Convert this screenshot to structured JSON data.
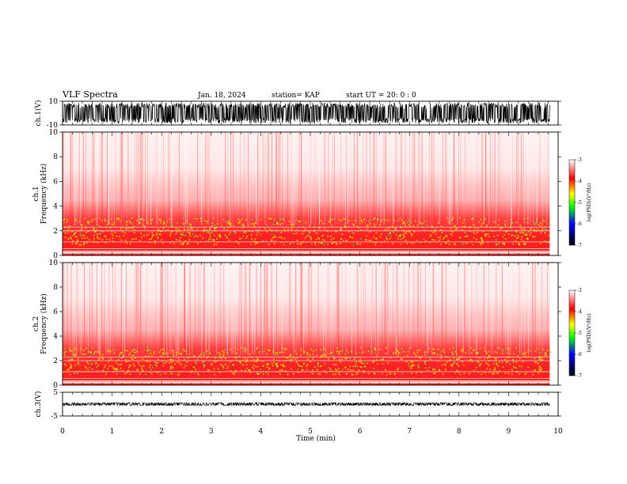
{
  "header": {
    "title": "VLF Spectra",
    "date": "Jan. 18, 2024",
    "station": "station= KAP",
    "start": "start  UT =   20: 0  : 0"
  },
  "chart_data": [
    {
      "type": "line",
      "name": "ch1-waveform",
      "ylabel": "ch.1(V)",
      "ylim": [
        -10,
        10
      ],
      "yticks": [
        "10",
        "-10"
      ],
      "xlim": [
        0,
        10
      ],
      "x_extent": [
        0,
        9.83
      ]
    },
    {
      "type": "heatmap",
      "name": "ch1-spectrogram",
      "ylabel_line1": "ch.1",
      "ylabel_line2": "Frequency  (kHz)",
      "ylim": [
        0,
        10
      ],
      "yticks": [
        "0",
        "2",
        "4",
        "6",
        "8",
        "10"
      ],
      "xlim": [
        0,
        10
      ],
      "x_extent": [
        0,
        9.83
      ],
      "colorbar": {
        "label": "log(PSD)(V²/Hz)",
        "range": [
          -7,
          -3
        ],
        "ticks": [
          "-3",
          "-4",
          "-5",
          "-6",
          "-7"
        ]
      }
    },
    {
      "type": "heatmap",
      "name": "ch2-spectrogram",
      "ylabel_line1": "ch.2",
      "ylabel_line2": "Frequency  (kHz)",
      "ylim": [
        0,
        10
      ],
      "yticks": [
        "0",
        "2",
        "4",
        "6",
        "8",
        "10"
      ],
      "xlim": [
        0,
        10
      ],
      "x_extent": [
        0,
        9.83
      ],
      "colorbar": {
        "label": "log(PSD)(V²/Hz)",
        "range": [
          -7,
          -3
        ],
        "ticks": [
          "-3",
          "-4",
          "-5",
          "-6",
          "-7"
        ]
      }
    },
    {
      "type": "line",
      "name": "ch3-waveform",
      "ylabel": "ch.3(V)",
      "ylim": [
        -5,
        5
      ],
      "yticks": [
        "5",
        "-5"
      ],
      "xlim": [
        0,
        10
      ],
      "x_extent": [
        0,
        9.83
      ],
      "xlabel": "Time  (min)",
      "xticks": [
        "0",
        "1",
        "2",
        "3",
        "4",
        "5",
        "6",
        "7",
        "8",
        "9",
        "10"
      ]
    }
  ],
  "colors": {
    "waveform": "#000000",
    "spec_background": "#ffffff",
    "spec_low": "#ffc8c8",
    "spec_mid": "#ff2020",
    "spec_high": "#ffff00",
    "spec_peak": "#40ff40"
  }
}
